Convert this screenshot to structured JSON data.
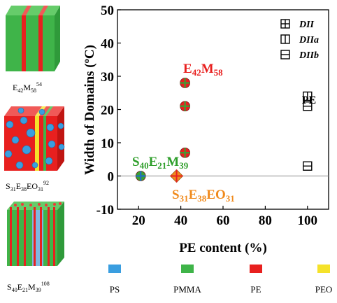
{
  "chart_data": {
    "type": "scatter",
    "xlabel": "PE content (%)",
    "ylabel": "Width of Domains (ºC)",
    "xlim": [
      10,
      110
    ],
    "ylim": [
      -10,
      50
    ],
    "xticks": [
      20,
      40,
      60,
      80,
      100
    ],
    "yticks": [
      -10,
      0,
      10,
      20,
      30,
      40,
      50
    ],
    "zero_line": true,
    "grid": false,
    "legend": {
      "placement": "top-right",
      "entries": [
        {
          "key": "DII",
          "label": "DII",
          "marker": "square-cross"
        },
        {
          "key": "DIIa",
          "label": "DIIa",
          "marker": "square-vline"
        },
        {
          "key": "DIIb",
          "label": "DIIb",
          "marker": "square-hline"
        }
      ]
    },
    "series": [
      {
        "marker": "square-vline",
        "color": "#000000",
        "points": [
          [
            100,
            24
          ]
        ]
      },
      {
        "marker": "square-hline",
        "color": "#000000",
        "points": [
          [
            100,
            21
          ],
          [
            100,
            3
          ]
        ]
      },
      {
        "marker": "circle-cross",
        "fill": "#e8201f",
        "cross": "#3aa035",
        "points": [
          [
            42,
            28
          ],
          [
            42,
            21
          ],
          [
            42,
            7
          ]
        ]
      },
      {
        "marker": "circle-cross",
        "fill": "#3aa035",
        "cross": "#1f6fc2",
        "points": [
          [
            21,
            0
          ]
        ]
      },
      {
        "marker": "diamond-cross",
        "fill": "#f08a1c",
        "cross": "#e8201f",
        "points": [
          [
            38,
            0
          ]
        ]
      }
    ],
    "annotations": [
      {
        "key": "pe",
        "text": "PE",
        "color": "#000000"
      },
      {
        "key": "e42m58",
        "base1": "E",
        "sub1": "42",
        "base2": "M",
        "sub2": "58",
        "color": "#e8201f"
      },
      {
        "key": "s40",
        "base1": "S",
        "sub1": "40",
        "base2": "E",
        "sub2": "21",
        "base3": "M",
        "sub3": "39",
        "color": "#2e9e2a"
      },
      {
        "key": "s31",
        "base1": "S",
        "sub1": "31",
        "base2": "E",
        "sub2": "38",
        "base3": "EO",
        "sub3": "31",
        "color": "#f08a1c"
      }
    ]
  },
  "illustrations": {
    "top": {
      "base1": "E",
      "sub1": "42",
      "base2": "M",
      "sub2": "58",
      "sup": "54",
      "colors": [
        "#3fb449",
        "#e8201f"
      ]
    },
    "middle": {
      "base1": "S",
      "sub1": "31",
      "base2": "E",
      "sub2": "38",
      "base3": "EO",
      "sub3": "31",
      "sup": "92",
      "colors": [
        "#e8201f",
        "#f5e22a",
        "#3a9ee0"
      ]
    },
    "bottom": {
      "base1": "S",
      "sub1": "40",
      "base2": "E",
      "sub2": "21",
      "base3": "M",
      "sub3": "39",
      "sup": "108",
      "colors": [
        "#3fb449",
        "#e8201f",
        "#3a9ee0"
      ]
    }
  },
  "color_legend": [
    {
      "label": "PS",
      "color": "#3a9ee0"
    },
    {
      "label": "PMMA",
      "color": "#3fb449"
    },
    {
      "label": "PE",
      "color": "#e8201f"
    },
    {
      "label": "PEO",
      "color": "#f5e22a"
    }
  ]
}
